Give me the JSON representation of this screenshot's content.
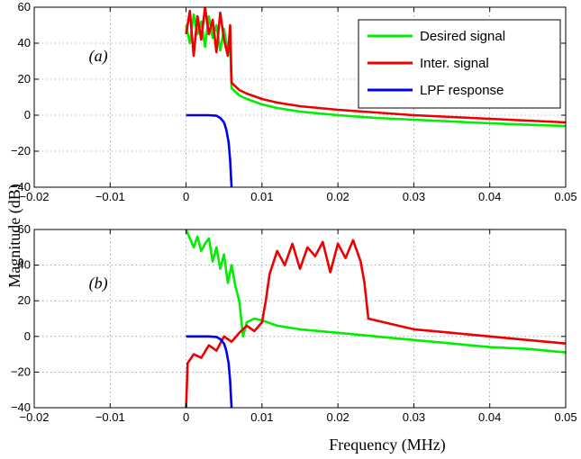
{
  "chart_data": [
    {
      "id": "a",
      "type": "line",
      "panel_label": "(a)",
      "xlim": [
        -0.02,
        0.05
      ],
      "ylim": [
        -40,
        60
      ],
      "xticks": [
        "−0.02",
        "−0.01",
        "0",
        "0.01",
        "0.02",
        "0.03",
        "0.04",
        "0.05"
      ],
      "yticks": [
        "60",
        "40",
        "20",
        "0",
        "−20",
        "−40"
      ],
      "grid": true,
      "legend_position": "top-right",
      "series": [
        {
          "name": "Desired signal",
          "color": "#00ee00",
          "x": [
            0,
            0.0005,
            0.001,
            0.0015,
            0.002,
            0.0025,
            0.003,
            0.0035,
            0.004,
            0.0045,
            0.005,
            0.0055,
            0.0058,
            0.006,
            0.007,
            0.008,
            0.01,
            0.012,
            0.015,
            0.02,
            0.025,
            0.03,
            0.035,
            0.04,
            0.045,
            0.05
          ],
          "y": [
            50,
            40,
            56,
            45,
            52,
            38,
            55,
            43,
            50,
            36,
            48,
            35,
            40,
            15,
            11,
            9,
            6,
            4,
            2,
            0,
            -1.5,
            -2.5,
            -3.5,
            -4.5,
            -5.3,
            -6
          ]
        },
        {
          "name": "Inter. signal",
          "color": "#ee0000",
          "x": [
            0,
            0.0005,
            0.001,
            0.0015,
            0.002,
            0.0025,
            0.003,
            0.0035,
            0.004,
            0.0045,
            0.005,
            0.0055,
            0.0058,
            0.006,
            0.007,
            0.008,
            0.01,
            0.012,
            0.015,
            0.02,
            0.025,
            0.03,
            0.035,
            0.04,
            0.045,
            0.05
          ],
          "y": [
            45,
            58,
            33,
            55,
            42,
            60,
            45,
            53,
            35,
            57,
            42,
            33,
            50,
            18,
            14,
            12,
            9,
            7,
            5,
            3,
            1.5,
            0,
            -1,
            -2,
            -3,
            -4
          ]
        },
        {
          "name": "LPF response",
          "color": "#0000ee",
          "x": [
            0,
            0.003,
            0.004,
            0.0045,
            0.005,
            0.0053,
            0.0056,
            0.0058,
            0.0059,
            0.006
          ],
          "y": [
            0,
            0,
            -0.3,
            -1.5,
            -4,
            -8,
            -15,
            -25,
            -33,
            -40
          ]
        }
      ]
    },
    {
      "id": "b",
      "type": "line",
      "panel_label": "(b)",
      "xlim": [
        -0.02,
        0.05
      ],
      "ylim": [
        -40,
        60
      ],
      "xticks": [
        "−0.02",
        "−0.01",
        "0",
        "0.01",
        "0.02",
        "0.03",
        "0.04",
        "0.05"
      ],
      "yticks": [
        "60",
        "40",
        "20",
        "0",
        "−20",
        "−40"
      ],
      "grid": true,
      "series": [
        {
          "name": "Desired signal",
          "color": "#00ee00",
          "x": [
            0,
            0.0005,
            0.001,
            0.0015,
            0.002,
            0.0025,
            0.003,
            0.0035,
            0.004,
            0.0045,
            0.005,
            0.0055,
            0.006,
            0.0065,
            0.007,
            0.0075,
            0.008,
            0.009,
            0.01,
            0.012,
            0.015,
            0.02,
            0.025,
            0.03,
            0.035,
            0.04,
            0.045,
            0.05
          ],
          "y": [
            60,
            55,
            50,
            56,
            48,
            52,
            55,
            42,
            50,
            38,
            46,
            30,
            40,
            28,
            20,
            0,
            8,
            10,
            9,
            6,
            4,
            2,
            0,
            -2,
            -4,
            -6,
            -7,
            -9
          ]
        },
        {
          "name": "Inter. signal",
          "color": "#ee0000",
          "x": [
            0,
            0.0002,
            0.001,
            0.002,
            0.003,
            0.004,
            0.005,
            0.006,
            0.007,
            0.008,
            0.009,
            0.01,
            0.0105,
            0.011,
            0.012,
            0.013,
            0.014,
            0.015,
            0.016,
            0.017,
            0.018,
            0.019,
            0.02,
            0.021,
            0.022,
            0.023,
            0.0235,
            0.024,
            0.026,
            0.03,
            0.035,
            0.04,
            0.045,
            0.05
          ],
          "y": [
            -40,
            -15,
            -10,
            -12,
            -5,
            -8,
            0,
            -3,
            2,
            6,
            3,
            8,
            20,
            35,
            48,
            40,
            52,
            38,
            50,
            45,
            53,
            36,
            52,
            44,
            54,
            42,
            30,
            10,
            8,
            4,
            2,
            0,
            -2,
            -4
          ]
        },
        {
          "name": "LPF response",
          "color": "#0000ee",
          "x": [
            0,
            0.003,
            0.004,
            0.0045,
            0.005,
            0.0053,
            0.0056,
            0.0058,
            0.0059,
            0.006
          ],
          "y": [
            0,
            0,
            -0.3,
            -1.5,
            -4,
            -8,
            -15,
            -25,
            -33,
            -40
          ]
        }
      ]
    }
  ],
  "xlabel": "Frequency (MHz)",
  "ylabel": "Magnitude (dB)"
}
